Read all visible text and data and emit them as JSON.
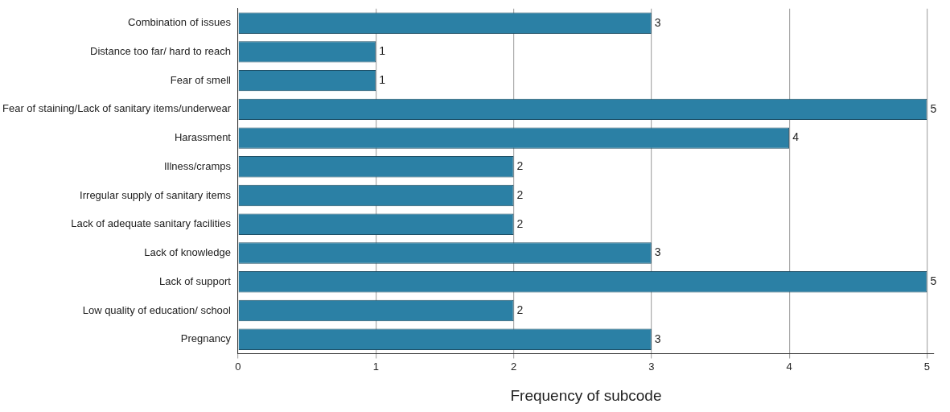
{
  "chart_data": {
    "type": "bar",
    "orientation": "horizontal",
    "xlabel": "Frequency of subcode",
    "categories": [
      "Combination of issues",
      "Distance too far/ hard to reach",
      "Fear of smell",
      "Fear of staining/Lack of sanitary items/underwear",
      "Harassment",
      "Illness/cramps",
      "Irregular supply of sanitary items",
      "Lack of adequate sanitary facilities",
      "Lack of knowledge",
      "Lack of support",
      "Low quality of education/ school",
      "Pregnancy"
    ],
    "values": [
      3,
      1,
      1,
      5,
      4,
      2,
      2,
      2,
      3,
      5,
      2,
      3
    ],
    "color": "#2b80a5",
    "xlim": [
      0,
      5.05
    ],
    "xticks": [
      0,
      1,
      2,
      3,
      4,
      5
    ],
    "grid": "x",
    "data_labels": true,
    "legend": false
  }
}
